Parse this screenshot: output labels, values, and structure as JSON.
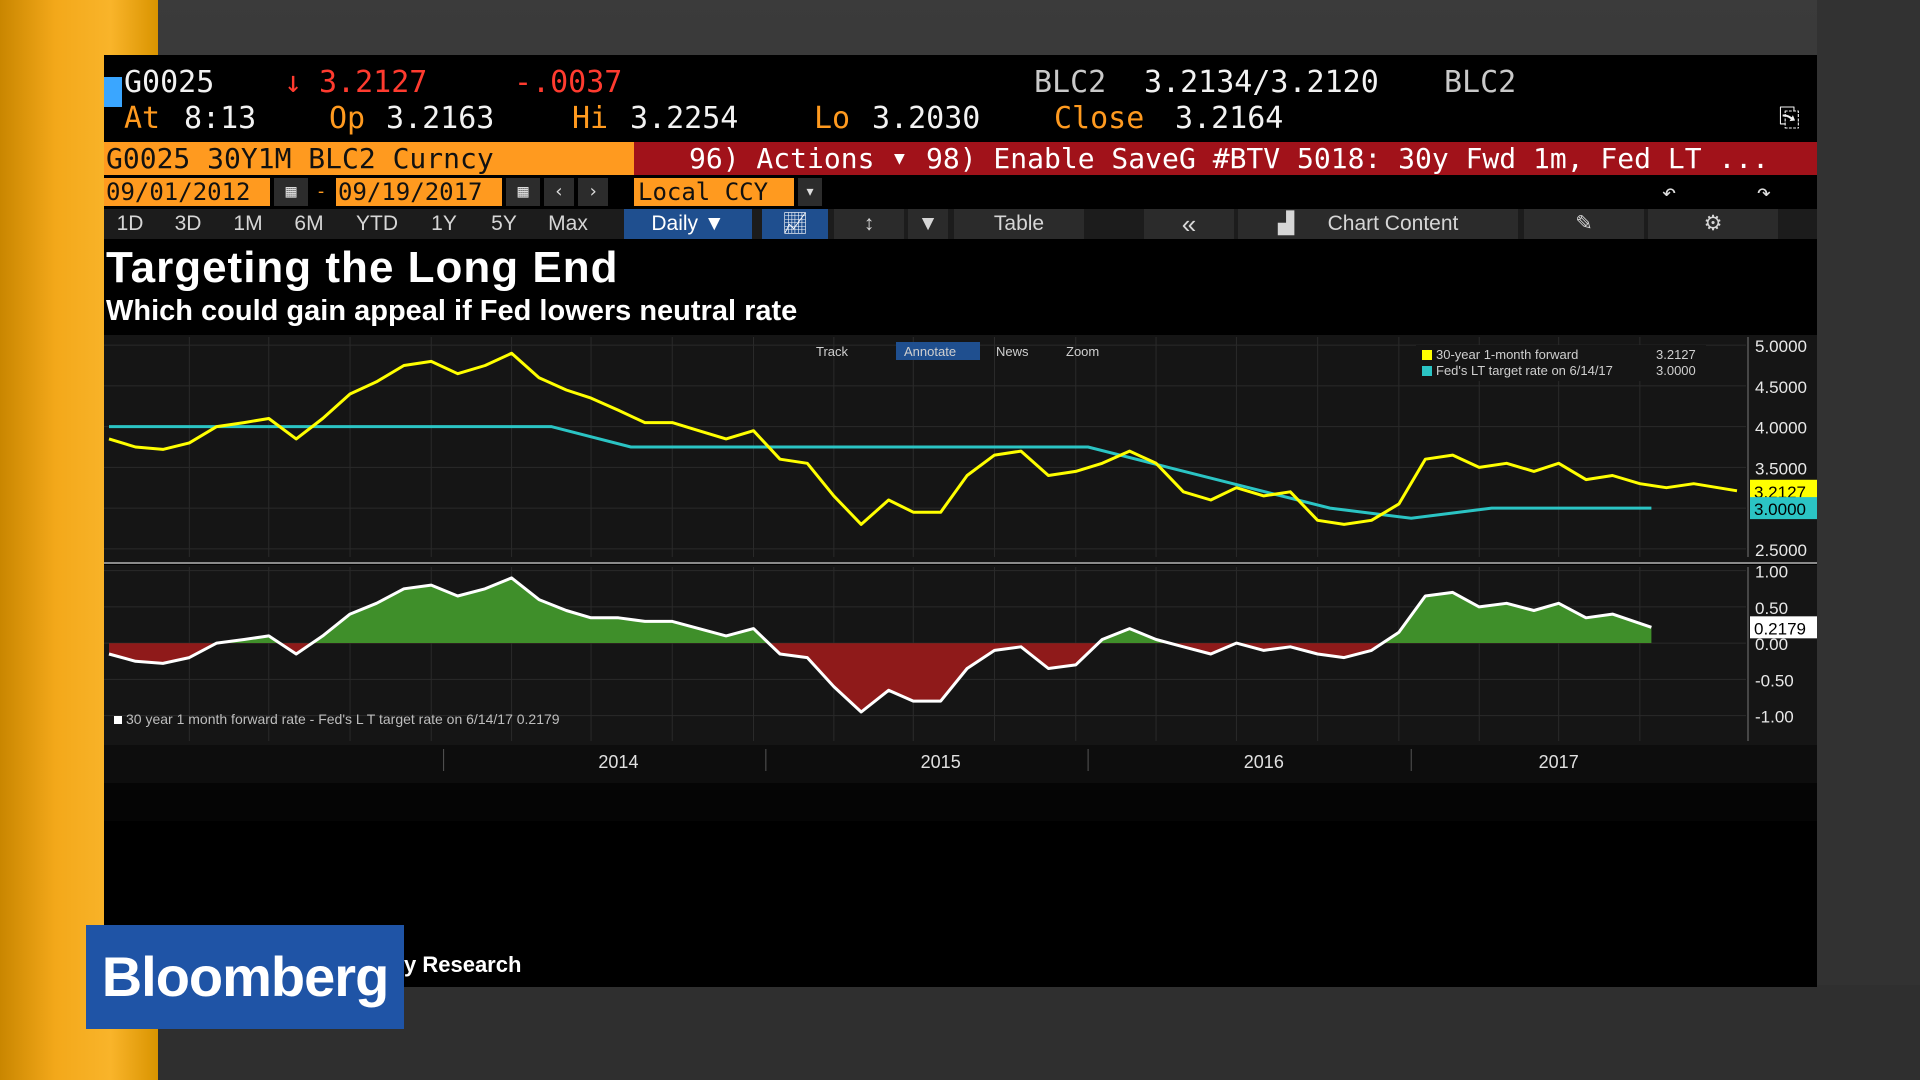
{
  "header": {
    "ticker": "G0025",
    "arrow": "↓",
    "last": "3.2127",
    "change": "-.0037",
    "source": "BLC2",
    "bid_ask": "3.2134/3.2120",
    "source2": "BLC2",
    "at_label": "At",
    "at_value": "8:13",
    "op_label": "Op",
    "op_value": "3.2163",
    "hi_label": "Hi",
    "hi_value": "3.2254",
    "lo_label": "Lo",
    "lo_value": "3.2030",
    "close_label": "Close",
    "close_value": "3.2164"
  },
  "command_bar": {
    "security": "G0025 30Y1M BLC2 Curncy",
    "actions": "96) Actions",
    "enable_save": "98) Enable Save",
    "chart_title": "G #BTV 5018: 30y Fwd 1m, Fed LT ..."
  },
  "dates": {
    "start": "09/01/2012",
    "sep": "-",
    "end": "09/19/2017",
    "currency": "Local CCY"
  },
  "toolbar": {
    "ranges": [
      "1D",
      "3D",
      "1M",
      "6M",
      "YTD",
      "1Y",
      "5Y",
      "Max"
    ],
    "period": "Daily ▼",
    "table": "Table",
    "collapse": "«",
    "chart_content": "Chart Content"
  },
  "headline": {
    "title": "Targeting the Long End",
    "subtitle": "Which could gain appeal if Fed lowers neutral rate"
  },
  "chart_tools": [
    "Track",
    "Annotate",
    "News",
    "Zoom"
  ],
  "source_text": "y Research",
  "brand": "Bloomberg",
  "colors": {
    "yellow_series": "#ffff00",
    "cyan_series": "#2bc4c4",
    "positive_fill": "#3f8f2a",
    "negative_fill": "#8f1a1a",
    "accent_orange": "#ff9a1f",
    "bloomberg_blue": "#1f54a6"
  },
  "chart_data": [
    {
      "type": "line",
      "x_ticks": [
        "2014",
        "2015",
        "2016",
        "2017"
      ],
      "y_ticks": [
        "5.0000",
        "4.5000",
        "4.0000",
        "3.5000",
        "3.0000",
        "2.5000"
      ],
      "ylim": [
        2.4,
        5.1
      ],
      "last_labels": [
        "3.2127",
        "3.0000"
      ],
      "series": [
        {
          "name": "30-year 1-month forward",
          "last_value_label": "3.2127",
          "points": [
            [
              "2012-09-01",
              3.85
            ],
            [
              "2012-10-01",
              3.75
            ],
            [
              "2012-11-01",
              3.72
            ],
            [
              "2012-12-01",
              3.8
            ],
            [
              "2013-01-01",
              4.0
            ],
            [
              "2013-02-01",
              4.05
            ],
            [
              "2013-03-01",
              4.1
            ],
            [
              "2013-04-01",
              3.85
            ],
            [
              "2013-05-01",
              4.1
            ],
            [
              "2013-06-01",
              4.4
            ],
            [
              "2013-07-01",
              4.55
            ],
            [
              "2013-08-01",
              4.75
            ],
            [
              "2013-09-01",
              4.8
            ],
            [
              "2013-10-01",
              4.65
            ],
            [
              "2013-11-01",
              4.75
            ],
            [
              "2013-12-01",
              4.9
            ],
            [
              "2014-01-01",
              4.6
            ],
            [
              "2014-02-01",
              4.45
            ],
            [
              "2014-03-01",
              4.35
            ],
            [
              "2014-04-01",
              4.2
            ],
            [
              "2014-05-01",
              4.05
            ],
            [
              "2014-06-01",
              4.05
            ],
            [
              "2014-07-01",
              3.95
            ],
            [
              "2014-08-01",
              3.85
            ],
            [
              "2014-09-01",
              3.95
            ],
            [
              "2014-10-01",
              3.6
            ],
            [
              "2014-11-01",
              3.55
            ],
            [
              "2014-12-01",
              3.15
            ],
            [
              "2015-01-01",
              2.8
            ],
            [
              "2015-02-01",
              3.1
            ],
            [
              "2015-03-01",
              2.95
            ],
            [
              "2015-04-01",
              2.95
            ],
            [
              "2015-05-01",
              3.4
            ],
            [
              "2015-06-01",
              3.65
            ],
            [
              "2015-07-01",
              3.7
            ],
            [
              "2015-08-01",
              3.4
            ],
            [
              "2015-09-01",
              3.45
            ],
            [
              "2015-10-01",
              3.55
            ],
            [
              "2015-11-01",
              3.7
            ],
            [
              "2015-12-01",
              3.55
            ],
            [
              "2016-01-01",
              3.2
            ],
            [
              "2016-02-01",
              3.1
            ],
            [
              "2016-03-01",
              3.25
            ],
            [
              "2016-04-01",
              3.15
            ],
            [
              "2016-05-01",
              3.2
            ],
            [
              "2016-06-01",
              2.85
            ],
            [
              "2016-07-01",
              2.8
            ],
            [
              "2016-08-01",
              2.85
            ],
            [
              "2016-09-01",
              3.05
            ],
            [
              "2016-10-01",
              3.6
            ],
            [
              "2016-11-01",
              3.65
            ],
            [
              "2016-12-01",
              3.5
            ],
            [
              "2017-01-01",
              3.55
            ],
            [
              "2017-02-01",
              3.45
            ],
            [
              "2017-03-01",
              3.55
            ],
            [
              "2017-04-01",
              3.35
            ],
            [
              "2017-05-01",
              3.4
            ],
            [
              "2017-06-01",
              3.3
            ],
            [
              "2017-07-01",
              3.25
            ],
            [
              "2017-08-01",
              3.3
            ],
            [
              "2017-09-19",
              3.2127
            ]
          ]
        },
        {
          "name": "Fed's LT target rate on 6/14/17",
          "last_value_label": "3.0000",
          "points": [
            [
              "2012-09-01",
              4.0
            ],
            [
              "2014-01-15",
              4.0
            ],
            [
              "2014-04-15",
              3.75
            ],
            [
              "2015-09-15",
              3.75
            ],
            [
              "2015-12-15",
              3.5
            ],
            [
              "2016-03-15",
              3.25
            ],
            [
              "2016-06-15",
              3.0
            ],
            [
              "2016-09-15",
              2.875
            ],
            [
              "2016-12-15",
              3.0
            ],
            [
              "2017-06-14",
              3.0
            ]
          ]
        }
      ]
    },
    {
      "type": "area",
      "x_ticks": [
        "2014",
        "2015",
        "2016",
        "2017"
      ],
      "y_ticks": [
        "1.00",
        "0.50",
        "0.00",
        "-0.50",
        "-1.00"
      ],
      "ylim": [
        -1.35,
        1.05
      ],
      "last_label": "0.2179",
      "series": [
        {
          "name": "30 year 1 month forward rate - Fed's L T target rate on 6/14/17",
          "last_value_label": "0.2179",
          "points": [
            [
              "2012-09-01",
              -0.15
            ],
            [
              "2012-10-01",
              -0.25
            ],
            [
              "2012-11-01",
              -0.28
            ],
            [
              "2012-12-01",
              -0.2
            ],
            [
              "2013-01-01",
              0.0
            ],
            [
              "2013-02-01",
              0.05
            ],
            [
              "2013-03-01",
              0.1
            ],
            [
              "2013-04-01",
              -0.15
            ],
            [
              "2013-05-01",
              0.1
            ],
            [
              "2013-06-01",
              0.4
            ],
            [
              "2013-07-01",
              0.55
            ],
            [
              "2013-08-01",
              0.75
            ],
            [
              "2013-09-01",
              0.8
            ],
            [
              "2013-10-01",
              0.65
            ],
            [
              "2013-11-01",
              0.75
            ],
            [
              "2013-12-01",
              0.9
            ],
            [
              "2014-01-01",
              0.6
            ],
            [
              "2014-02-01",
              0.45
            ],
            [
              "2014-03-01",
              0.35
            ],
            [
              "2014-04-01",
              0.35
            ],
            [
              "2014-05-01",
              0.3
            ],
            [
              "2014-06-01",
              0.3
            ],
            [
              "2014-07-01",
              0.2
            ],
            [
              "2014-08-01",
              0.1
            ],
            [
              "2014-09-01",
              0.2
            ],
            [
              "2014-10-01",
              -0.15
            ],
            [
              "2014-11-01",
              -0.2
            ],
            [
              "2014-12-01",
              -0.6
            ],
            [
              "2015-01-01",
              -0.95
            ],
            [
              "2015-02-01",
              -0.65
            ],
            [
              "2015-03-01",
              -0.8
            ],
            [
              "2015-04-01",
              -0.8
            ],
            [
              "2015-05-01",
              -0.35
            ],
            [
              "2015-06-01",
              -0.1
            ],
            [
              "2015-07-01",
              -0.05
            ],
            [
              "2015-08-01",
              -0.35
            ],
            [
              "2015-09-01",
              -0.3
            ],
            [
              "2015-10-01",
              0.05
            ],
            [
              "2015-11-01",
              0.2
            ],
            [
              "2015-12-01",
              0.05
            ],
            [
              "2016-01-01",
              -0.05
            ],
            [
              "2016-02-01",
              -0.15
            ],
            [
              "2016-03-01",
              0.0
            ],
            [
              "2016-04-01",
              -0.1
            ],
            [
              "2016-05-01",
              -0.05
            ],
            [
              "2016-06-01",
              -0.15
            ],
            [
              "2016-07-01",
              -0.2
            ],
            [
              "2016-08-01",
              -0.1
            ],
            [
              "2016-09-01",
              0.15
            ],
            [
              "2016-10-01",
              0.65
            ],
            [
              "2016-11-01",
              0.7
            ],
            [
              "2016-12-01",
              0.5
            ],
            [
              "2017-01-01",
              0.55
            ],
            [
              "2017-02-01",
              0.45
            ],
            [
              "2017-03-01",
              0.55
            ],
            [
              "2017-04-01",
              0.35
            ],
            [
              "2017-05-01",
              0.4
            ],
            [
              "2017-06-14",
              0.2179
            ]
          ]
        }
      ]
    }
  ],
  "legend_upper": [
    {
      "label": "30-year 1-month forward",
      "value": "3.2127",
      "color": "#ffff00"
    },
    {
      "label": "Fed's LT target rate on 6/14/17",
      "value": "3.0000",
      "color": "#2bc4c4"
    }
  ],
  "legend_lower": {
    "text": "30 year 1 month forward rate - Fed's L T target rate on 6/14/17 0.2179"
  }
}
